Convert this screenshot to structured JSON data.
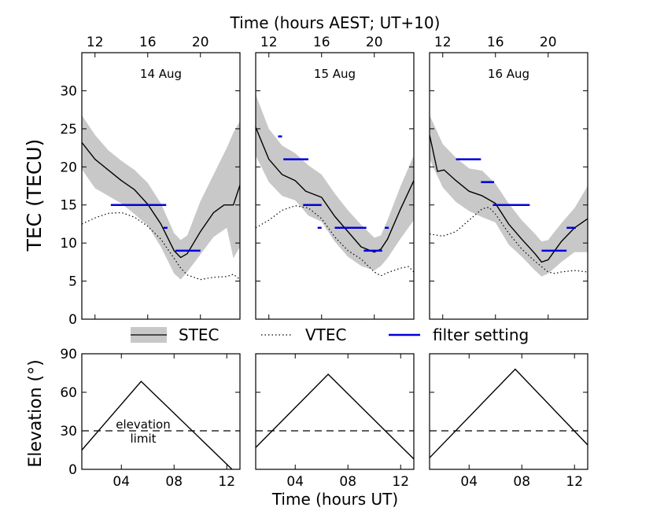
{
  "chart_data": {
    "type": "line",
    "top_axis_title": "Time (hours AEST; UT+10)",
    "bottom_axis_title": "Time (hours UT)",
    "top_ylabel": "TEC (TECU)",
    "bottom_ylabel": "Elevation (°)",
    "top_ylim": [
      0,
      35
    ],
    "top_yticks": [
      "0",
      "5",
      "10",
      "15",
      "20",
      "25",
      "30"
    ],
    "bottom_ylim": [
      0,
      90
    ],
    "bottom_yticks": [
      "0",
      "30",
      "60",
      "90"
    ],
    "xlim_ut": [
      1,
      13
    ],
    "aest_ticks": [
      "12",
      "16",
      "20"
    ],
    "ut_ticks": [
      "04",
      "08",
      "12"
    ],
    "legend": {
      "stec": "STEC",
      "vtec": "VTEC",
      "filter": "filter setting",
      "band_color": "#c8c8c8",
      "filter_color": "#0000dd",
      "position": "between-rows"
    },
    "elevation_limit": {
      "value": 30,
      "label_line1": "elevation",
      "label_line2": "limit"
    },
    "panels": [
      {
        "label": "14 Aug",
        "stec": [
          [
            1,
            23.2
          ],
          [
            2,
            21
          ],
          [
            3,
            19.6
          ],
          [
            4,
            18.2
          ],
          [
            5,
            17
          ],
          [
            6,
            15.1
          ],
          [
            7,
            12.5
          ],
          [
            8,
            9
          ],
          [
            8.5,
            8.1
          ],
          [
            9,
            8.6
          ],
          [
            10,
            11.5
          ],
          [
            11,
            14
          ],
          [
            11.8,
            15
          ],
          [
            12.5,
            15
          ],
          [
            13,
            17.6
          ]
        ],
        "stec_band": [
          [
            1,
            26.8,
            19.7
          ],
          [
            2,
            24.2,
            17.2
          ],
          [
            3,
            22.2,
            16.2
          ],
          [
            4,
            20.8,
            15.2
          ],
          [
            5,
            19.6,
            13.8
          ],
          [
            6,
            17.9,
            12.3
          ],
          [
            7,
            15.2,
            9.5
          ],
          [
            8,
            11.3,
            6
          ],
          [
            8.5,
            10.4,
            5.2
          ],
          [
            9,
            11,
            6.2
          ],
          [
            10,
            15.5,
            8.5
          ],
          [
            11,
            19,
            10.8
          ],
          [
            12,
            22.5,
            12
          ],
          [
            12.5,
            24.5,
            8
          ],
          [
            13,
            26,
            9.5
          ]
        ],
        "vtec": [
          [
            1,
            12.5
          ],
          [
            2,
            13.3
          ],
          [
            3,
            13.9
          ],
          [
            4,
            14
          ],
          [
            5,
            13.4
          ],
          [
            6,
            12.2
          ],
          [
            7,
            10.5
          ],
          [
            8,
            8
          ],
          [
            8.5,
            6.7
          ],
          [
            9,
            5.8
          ],
          [
            10,
            5.2
          ],
          [
            11,
            5.5
          ],
          [
            12,
            5.6
          ],
          [
            12.5,
            5.9
          ],
          [
            13,
            5.2
          ]
        ],
        "filters": [
          [
            3.2,
            7.4,
            15
          ],
          [
            7.2,
            7.5,
            12
          ],
          [
            8.1,
            10,
            9
          ]
        ],
        "elevation": [
          [
            1,
            15
          ],
          [
            5.5,
            68.5
          ],
          [
            12.4,
            0
          ]
        ]
      },
      {
        "label": "15 Aug",
        "stec": [
          [
            1,
            25.2
          ],
          [
            2,
            21
          ],
          [
            3,
            19
          ],
          [
            4,
            18.2
          ],
          [
            4.8,
            16.8
          ],
          [
            6,
            16
          ],
          [
            7,
            13.5
          ],
          [
            8,
            11.5
          ],
          [
            9,
            9.5
          ],
          [
            10,
            8.8
          ],
          [
            10.5,
            9.2
          ],
          [
            11,
            10.5
          ],
          [
            12,
            14.5
          ],
          [
            13,
            18.2
          ]
        ],
        "stec_band": [
          [
            1,
            29.5,
            21.5
          ],
          [
            2,
            25,
            18
          ],
          [
            3,
            22.8,
            16.2
          ],
          [
            4,
            21.8,
            15.6
          ],
          [
            5,
            20.2,
            13.6
          ],
          [
            6,
            19,
            12.8
          ],
          [
            7,
            16.5,
            10.2
          ],
          [
            8,
            14.3,
            8.2
          ],
          [
            9,
            12.4,
            7
          ],
          [
            10,
            10.7,
            6.4
          ],
          [
            10.5,
            11,
            7
          ],
          [
            11,
            13,
            8
          ],
          [
            12,
            17.5,
            10.6
          ],
          [
            13,
            21.5,
            13
          ]
        ],
        "vtec": [
          [
            1,
            12
          ],
          [
            2,
            13
          ],
          [
            3,
            14.3
          ],
          [
            4,
            14.9
          ],
          [
            5,
            14.6
          ],
          [
            6,
            13.2
          ],
          [
            7,
            10.8
          ],
          [
            8,
            9
          ],
          [
            9,
            7.9
          ],
          [
            10,
            6.2
          ],
          [
            10.5,
            5.7
          ],
          [
            11,
            6.1
          ],
          [
            12,
            6.7
          ],
          [
            12.6,
            6.9
          ],
          [
            13,
            6.2
          ]
        ],
        "filters": [
          [
            2.7,
            3,
            24
          ],
          [
            3.1,
            5,
            21
          ],
          [
            4.6,
            6,
            15
          ],
          [
            5.7,
            6,
            12
          ],
          [
            7,
            9.4,
            12
          ],
          [
            9.2,
            10.6,
            9
          ],
          [
            10.8,
            11.1,
            12
          ]
        ],
        "elevation": [
          [
            1,
            17
          ],
          [
            6.5,
            74
          ],
          [
            13,
            8
          ]
        ]
      },
      {
        "label": "16 Aug",
        "stec": [
          [
            1,
            24.2
          ],
          [
            1.6,
            19.4
          ],
          [
            2.1,
            19.6
          ],
          [
            3,
            18.2
          ],
          [
            4,
            16.8
          ],
          [
            5,
            16.2
          ],
          [
            6,
            15.2
          ],
          [
            7,
            12.5
          ],
          [
            8,
            10.5
          ],
          [
            9,
            8.6
          ],
          [
            9.5,
            7.5
          ],
          [
            10,
            7.8
          ],
          [
            11,
            10.2
          ],
          [
            12,
            12
          ],
          [
            13,
            13.2
          ]
        ],
        "stec_band": [
          [
            1,
            26.8,
            21
          ],
          [
            2,
            23,
            17.3
          ],
          [
            3,
            21.2,
            15.4
          ],
          [
            4,
            19.8,
            14.2
          ],
          [
            5,
            19.5,
            13.4
          ],
          [
            6,
            17.8,
            12.7
          ],
          [
            7,
            15.2,
            9.8
          ],
          [
            8,
            13,
            8.2
          ],
          [
            9,
            11.2,
            6.4
          ],
          [
            9.5,
            10.2,
            5.6
          ],
          [
            10,
            10.4,
            6
          ],
          [
            11,
            12.6,
            7.5
          ],
          [
            12,
            14.6,
            8.8
          ],
          [
            13,
            17.5,
            8.8
          ]
        ],
        "vtec": [
          [
            1,
            11.2
          ],
          [
            2,
            10.9
          ],
          [
            3,
            11.5
          ],
          [
            4,
            13
          ],
          [
            5,
            14.5
          ],
          [
            5.5,
            14.7
          ],
          [
            6,
            13.8
          ],
          [
            7,
            11.3
          ],
          [
            8,
            9.2
          ],
          [
            9,
            7.6
          ],
          [
            10,
            6.2
          ],
          [
            10.5,
            6
          ],
          [
            11,
            6.2
          ],
          [
            12,
            6.4
          ],
          [
            13,
            6.2
          ]
        ],
        "filters": [
          [
            3,
            4.9,
            21
          ],
          [
            4.9,
            5.9,
            18
          ],
          [
            5.8,
            8.6,
            15
          ],
          [
            9.5,
            11.4,
            9
          ],
          [
            11.4,
            12.1,
            12
          ]
        ],
        "elevation": [
          [
            1,
            9
          ],
          [
            7.5,
            78
          ],
          [
            13,
            19
          ]
        ]
      }
    ]
  }
}
